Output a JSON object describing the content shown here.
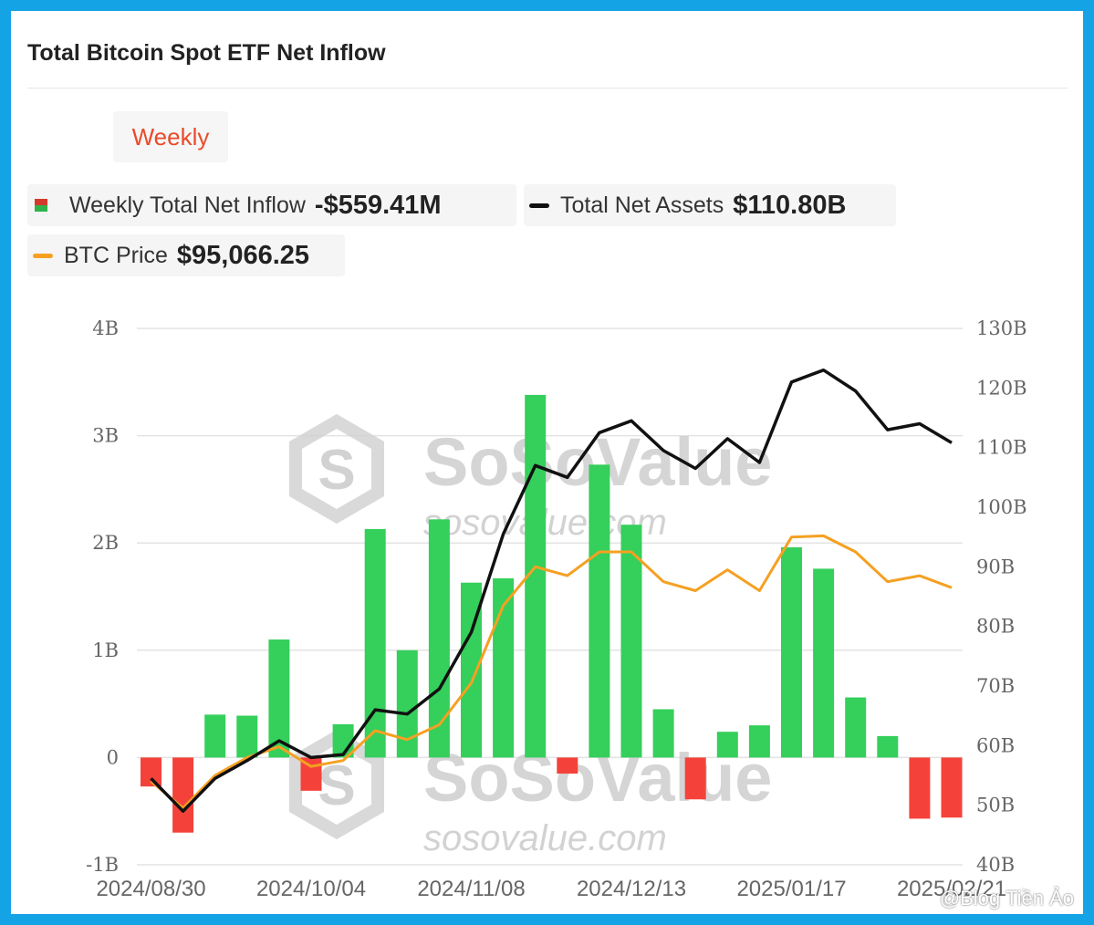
{
  "header": {
    "title": "Total Bitcoin Spot ETF Net Inflow"
  },
  "tabs": [
    {
      "label": "Weekly",
      "active": true
    }
  ],
  "legend": {
    "inflow": {
      "label": "Weekly Total Net Inflow",
      "value": "-$559.41M"
    },
    "assets": {
      "label": "Total Net Assets",
      "value": "$110.80B",
      "color": "#111111"
    },
    "price": {
      "label": "BTC Price",
      "value": "$95,066.25",
      "color": "#f5a022"
    }
  },
  "watermark": {
    "brand": "SoSoValue",
    "url": "sosovalue.com"
  },
  "credit": "@Blog Tiền Ảo",
  "chart_data": {
    "type": "bar",
    "x_tick_labels": [
      "2024/08/30",
      "2024/10/04",
      "2024/11/08",
      "2024/12/13",
      "2025/01/17",
      "2025/02/21"
    ],
    "left_axis": {
      "ticks": [
        "4B",
        "3B",
        "2B",
        "1B",
        "0",
        "-1B"
      ],
      "ylim": [
        -1,
        4
      ],
      "unit": "B"
    },
    "right_axis": {
      "ticks": [
        "130B",
        "120B",
        "110B",
        "100B",
        "90B",
        "80B",
        "70B",
        "60B",
        "50B",
        "40B"
      ],
      "ylim": [
        40,
        130
      ],
      "unit": "B"
    },
    "positive_color": "#35cf5b",
    "negative_color": "#f4423a",
    "weekly_net_inflow_B": [
      -0.27,
      -0.7,
      0.4,
      0.39,
      1.1,
      -0.31,
      0.31,
      2.13,
      1.0,
      2.22,
      1.63,
      1.67,
      3.38,
      -0.15,
      2.73,
      2.17,
      0.45,
      -0.39,
      0.24,
      0.3,
      1.96,
      1.76,
      0.56,
      0.2,
      -0.57,
      -0.56
    ],
    "total_net_assets_B": [
      54.5,
      49.0,
      54.5,
      57.5,
      60.8,
      58.0,
      58.5,
      66.0,
      65.3,
      69.5,
      79.0,
      95.5,
      107.0,
      105.0,
      112.5,
      114.5,
      109.5,
      106.5,
      111.5,
      107.5,
      121.0,
      123.0,
      119.5,
      113.0,
      114.0,
      110.8
    ],
    "btc_price_scaled_B": [
      54.0,
      49.5,
      55.0,
      58.0,
      59.8,
      56.5,
      57.5,
      62.5,
      61.0,
      63.5,
      70.5,
      83.5,
      90.0,
      88.5,
      92.5,
      92.5,
      87.5,
      86.0,
      89.5,
      86.0,
      95.0,
      95.2,
      92.5,
      87.5,
      88.5,
      86.5
    ]
  }
}
